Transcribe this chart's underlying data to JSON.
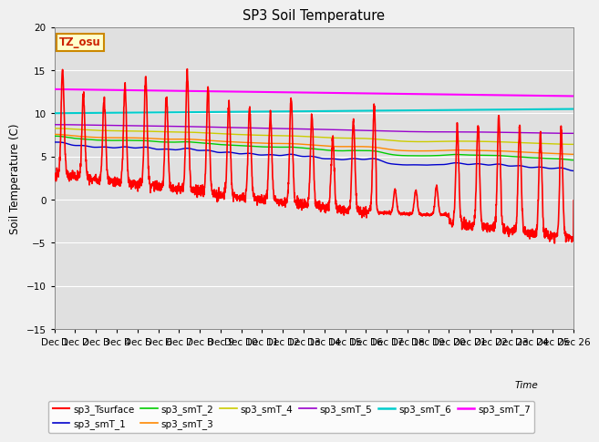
{
  "title": "SP3 Soil Temperature",
  "ylabel": "Soil Temperature (C)",
  "xlabel": "Time",
  "ylim": [
    -15,
    20
  ],
  "yticks": [
    -15,
    -10,
    -5,
    0,
    5,
    10,
    15,
    20
  ],
  "fig_facecolor": "#f0f0f0",
  "ax_facecolor": "#e0e0e0",
  "annotation_text": "TZ_osu",
  "annotation_bg": "#ffffcc",
  "annotation_border": "#cc8800",
  "series_colors": {
    "sp3_Tsurface": "#ff0000",
    "sp3_smT_1": "#0000cc",
    "sp3_smT_2": "#00cc00",
    "sp3_smT_3": "#ff8800",
    "sp3_smT_4": "#cccc00",
    "sp3_smT_5": "#9900cc",
    "sp3_smT_6": "#00cccc",
    "sp3_smT_7": "#ff00ff"
  },
  "series_lw": {
    "sp3_Tsurface": 1.2,
    "sp3_smT_1": 1.0,
    "sp3_smT_2": 1.0,
    "sp3_smT_3": 1.0,
    "sp3_smT_4": 1.0,
    "sp3_smT_5": 1.0,
    "sp3_smT_6": 1.5,
    "sp3_smT_7": 1.5
  },
  "n_days": 25,
  "pts_per_day": 96,
  "xtick_day_labels": [
    "Dec 1",
    "Dec 12",
    "Dec 13",
    "Dec 14",
    "Dec 15",
    "Dec 16",
    "Dec 17",
    "Dec 18",
    "Dec 19",
    "Dec 20",
    "Dec 21",
    "Dec 22",
    "Dec 23",
    "Dec 24",
    "Dec 25",
    "Dec 26"
  ],
  "legend_order": [
    "sp3_Tsurface",
    "sp3_smT_1",
    "sp3_smT_2",
    "sp3_smT_3",
    "sp3_smT_4",
    "sp3_smT_5",
    "sp3_smT_6",
    "sp3_smT_7"
  ]
}
